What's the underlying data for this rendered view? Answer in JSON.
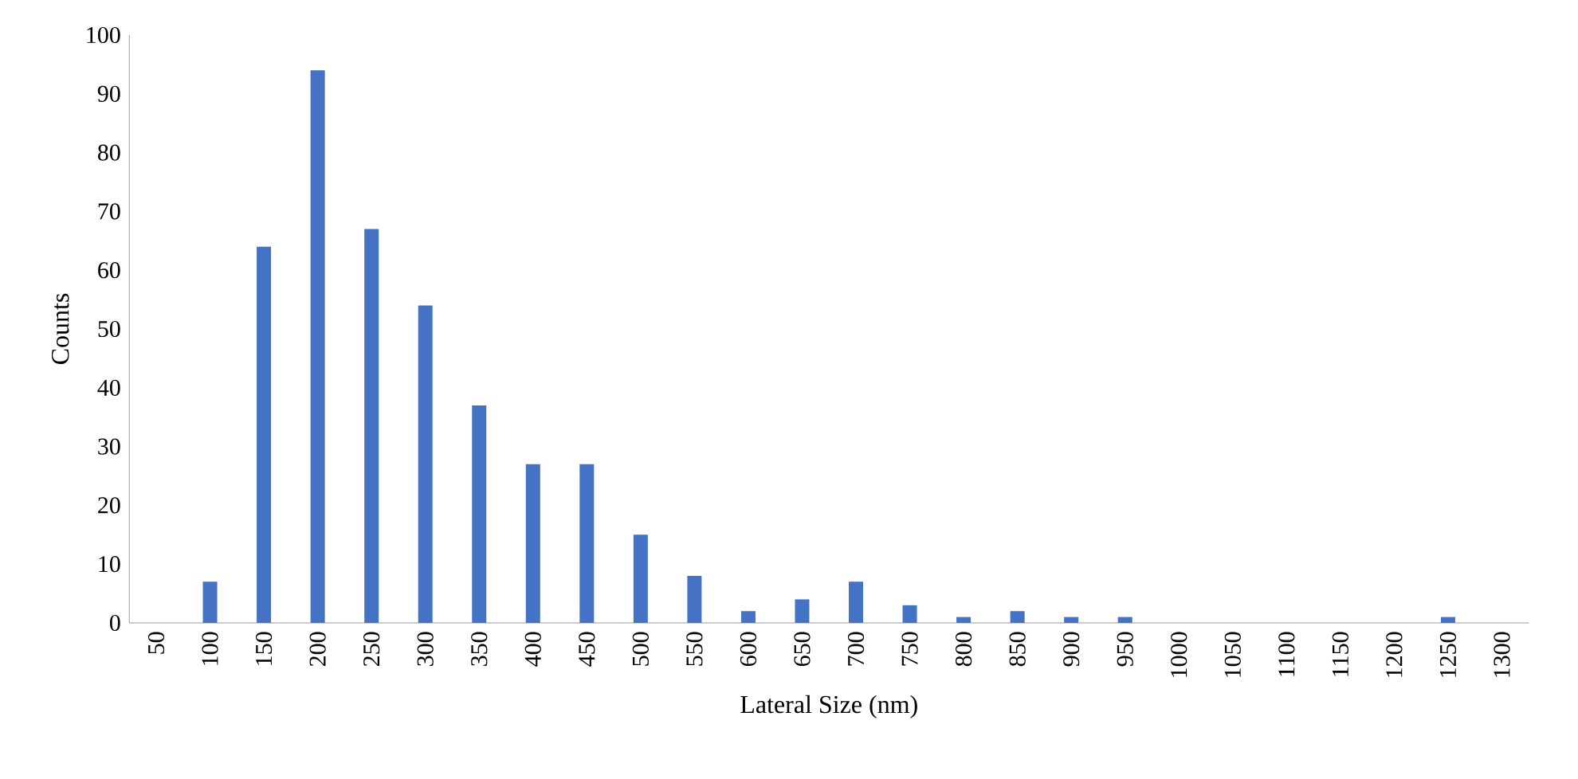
{
  "chart_data": {
    "type": "bar",
    "xlabel": "Lateral Size (nm)",
    "ylabel": "Counts",
    "categories": [
      "50",
      "100",
      "150",
      "200",
      "250",
      "300",
      "350",
      "400",
      "450",
      "500",
      "550",
      "600",
      "650",
      "700",
      "750",
      "800",
      "850",
      "900",
      "950",
      "1000",
      "1050",
      "1100",
      "1150",
      "1200",
      "1250",
      "1300"
    ],
    "values": [
      0,
      7,
      64,
      94,
      67,
      54,
      37,
      27,
      27,
      15,
      8,
      2,
      4,
      7,
      3,
      1,
      2,
      1,
      1,
      0,
      0,
      0,
      0,
      0,
      1,
      0
    ],
    "color": "#4472c4",
    "ylim": [
      0,
      100
    ],
    "yticks": [
      0,
      10,
      20,
      30,
      40,
      50,
      60,
      70,
      80,
      90,
      100
    ]
  }
}
